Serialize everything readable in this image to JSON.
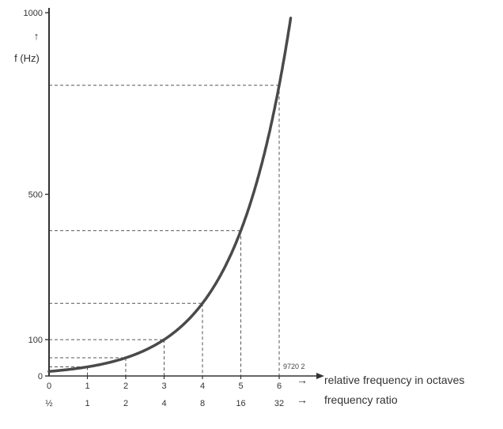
{
  "chart_data": {
    "type": "line",
    "ylabel": "f (Hz)",
    "y_axis_arrow": "↑",
    "ylim": [
      0,
      1000
    ],
    "y_ticks": [
      {
        "value": 0,
        "label": "0"
      },
      {
        "value": 100,
        "label": "100"
      },
      {
        "value": 500,
        "label": "500"
      },
      {
        "value": 1000,
        "label": "1000"
      }
    ],
    "x_octave_ticks": [
      "0",
      "1",
      "2",
      "3",
      "4",
      "5",
      "6"
    ],
    "x_ratio_ticks": [
      "½",
      "1",
      "2",
      "4",
      "8",
      "16",
      "32"
    ],
    "octave_axis_label": "relative frequency in octaves",
    "ratio_axis_label": "frequency ratio",
    "arrow_glyph": "→",
    "figure_code": "9720 2",
    "xlim": [
      0,
      6.3
    ],
    "series": [
      {
        "x": [
          0,
          0.5,
          1,
          1.5,
          2,
          2.5,
          3,
          3.5,
          4,
          4.5,
          5,
          5.5,
          6,
          6.2
        ],
        "y": [
          12.5,
          17.7,
          25,
          35.4,
          50,
          70.7,
          100,
          141,
          200,
          283,
          400,
          566,
          800,
          920
        ]
      }
    ],
    "guides": [
      {
        "x": 1,
        "y": 25
      },
      {
        "x": 2,
        "y": 50
      },
      {
        "x": 3,
        "y": 100
      },
      {
        "x": 4,
        "y": 200
      },
      {
        "x": 5,
        "y": 400
      },
      {
        "x": 6,
        "y": 800
      }
    ],
    "colors": {
      "curve": "#4a4a4a",
      "axis": "#333333",
      "guide": "#555555"
    }
  }
}
